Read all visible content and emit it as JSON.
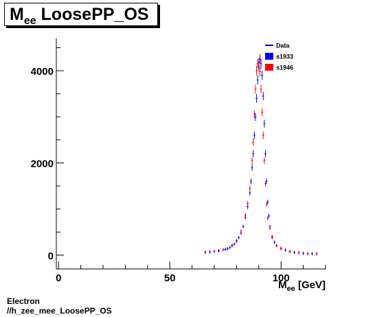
{
  "title": {
    "main": "M",
    "sub": "ee",
    "rest": " LoosePP_OS"
  },
  "footer": {
    "line1": "Electron",
    "line2": "//h_zee_mee_LoosePP_OS"
  },
  "chart_data": {
    "type": "scatter",
    "xlabel": {
      "main": "M",
      "sub": "ee",
      "rest": " [GeV]"
    },
    "ylabel": "",
    "xlim": [
      -1,
      120
    ],
    "ylim": [
      -300,
      4700
    ],
    "x_ticks": [
      0,
      50,
      100
    ],
    "y_ticks": [
      0,
      2000,
      4000
    ],
    "grid": false,
    "legend_position": "top-right",
    "legend": [
      {
        "name": "Data",
        "color": "#0000cc",
        "symbol": "line"
      },
      {
        "name": "s1933",
        "color": "#0000ff",
        "symbol": "box"
      },
      {
        "name": "s1946",
        "color": "#ff0000",
        "symbol": "box"
      }
    ],
    "series": [
      {
        "name": "s1933",
        "color": "#0000ff",
        "x": [
          66,
          68,
          70,
          72,
          74,
          75,
          76,
          77,
          78,
          79,
          80,
          81,
          82,
          83,
          84,
          85,
          86,
          86.5,
          87,
          87.5,
          88,
          88.5,
          89,
          89.5,
          90,
          90.5,
          91,
          91.5,
          92,
          92.5,
          93,
          93.5,
          94,
          94.5,
          95,
          96,
          97,
          98,
          100,
          102,
          104,
          106,
          108,
          110,
          112,
          114,
          116
        ],
        "y": [
          60,
          70,
          80,
          95,
          115,
          125,
          140,
          165,
          200,
          240,
          300,
          380,
          480,
          620,
          820,
          1050,
          1350,
          1600,
          1900,
          2200,
          2600,
          3000,
          3400,
          3800,
          4100,
          4250,
          4150,
          3900,
          3450,
          2850,
          2200,
          1600,
          1150,
          850,
          620,
          400,
          280,
          210,
          150,
          110,
          80,
          60,
          50,
          40,
          30,
          30,
          30
        ]
      },
      {
        "name": "s1946",
        "color": "#ff0000",
        "x": [
          66,
          70,
          74,
          78,
          80,
          82,
          84,
          85,
          86,
          87,
          87.5,
          88,
          88.5,
          89,
          89.5,
          90,
          90.5,
          91,
          91.5,
          92,
          92.5,
          93,
          93.5,
          94,
          95,
          96,
          98,
          100,
          104,
          108,
          112,
          116
        ],
        "y": [
          65,
          85,
          120,
          215,
          320,
          520,
          870,
          1120,
          1450,
          2050,
          2450,
          3050,
          3600,
          4000,
          4150,
          4180,
          3980,
          3600,
          3100,
          2600,
          2050,
          1550,
          1100,
          800,
          580,
          380,
          205,
          140,
          75,
          50,
          35,
          30
        ]
      }
    ]
  }
}
